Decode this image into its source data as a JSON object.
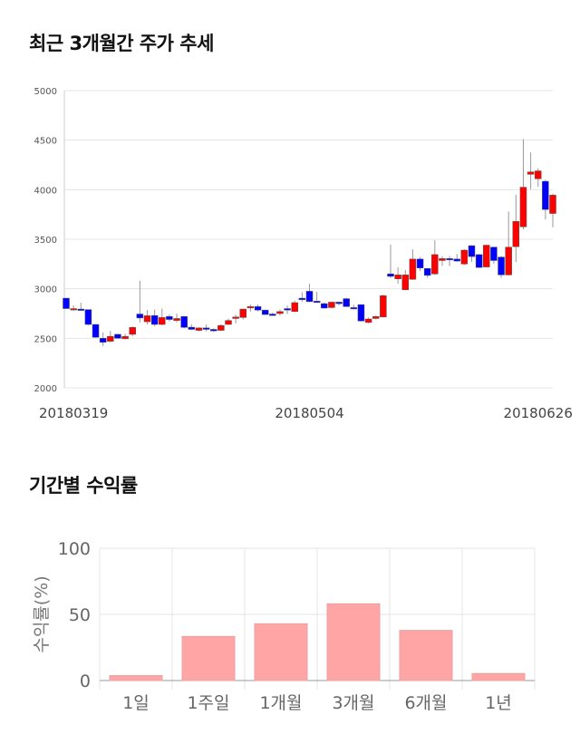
{
  "headings": {
    "price_trend": "최근 3개월간 주가 추세",
    "period_returns": "기간별 수익률"
  },
  "colors": {
    "up": "#ff0000",
    "down": "#0000ff",
    "wick": "#999999",
    "bar": "#ffa5a5",
    "grid": "#e6e6e6"
  },
  "chart_data": [
    {
      "type": "candlestick",
      "ylim": [
        2000,
        5000
      ],
      "yticks": [
        2000,
        2500,
        3000,
        3500,
        4000,
        4500,
        5000
      ],
      "xtick_labels": [
        {
          "index": 1,
          "label": "20180319"
        },
        {
          "index": 33,
          "label": "20180504"
        },
        {
          "index": 64,
          "label": "20180626"
        }
      ],
      "grid": true,
      "ohlc": [
        [
          2905,
          2905,
          2800,
          2800
        ],
        [
          2800,
          2832,
          2777,
          2800
        ],
        [
          2795,
          2860,
          2785,
          2790
        ],
        [
          2790,
          2790,
          2630,
          2640
        ],
        [
          2640,
          2640,
          2505,
          2510
        ],
        [
          2500,
          2560,
          2423,
          2460
        ],
        [
          2470,
          2575,
          2460,
          2520
        ],
        [
          2540,
          2545,
          2495,
          2500
        ],
        [
          2495,
          2545,
          2490,
          2520
        ],
        [
          2540,
          2620,
          2520,
          2610
        ],
        [
          2745,
          3080,
          2658,
          2705
        ],
        [
          2667,
          2786,
          2640,
          2728
        ],
        [
          2730,
          2790,
          2620,
          2640
        ],
        [
          2640,
          2800,
          2630,
          2710
        ],
        [
          2720,
          2740,
          2670,
          2690
        ],
        [
          2680,
          2750,
          2660,
          2700
        ],
        [
          2720,
          2725,
          2600,
          2610
        ],
        [
          2612,
          2640,
          2585,
          2590
        ],
        [
          2580,
          2610,
          2570,
          2605
        ],
        [
          2605,
          2640,
          2570,
          2590
        ],
        [
          2590,
          2600,
          2565,
          2575
        ],
        [
          2580,
          2640,
          2575,
          2630
        ],
        [
          2640,
          2700,
          2635,
          2680
        ],
        [
          2700,
          2740,
          2650,
          2715
        ],
        [
          2710,
          2800,
          2690,
          2795
        ],
        [
          2815,
          2840,
          2770,
          2820
        ],
        [
          2820,
          2840,
          2770,
          2785
        ],
        [
          2785,
          2790,
          2740,
          2740
        ],
        [
          2745,
          2760,
          2725,
          2730
        ],
        [
          2750,
          2790,
          2730,
          2770
        ],
        [
          2800,
          2830,
          2745,
          2785
        ],
        [
          2770,
          2880,
          2765,
          2860
        ],
        [
          2905,
          2965,
          2870,
          2890
        ],
        [
          2975,
          3050,
          2865,
          2870
        ],
        [
          2875,
          2970,
          2860,
          2870
        ],
        [
          2850,
          2860,
          2800,
          2805
        ],
        [
          2810,
          2870,
          2800,
          2865
        ],
        [
          2865,
          2870,
          2830,
          2850
        ],
        [
          2900,
          2910,
          2815,
          2820
        ],
        [
          2810,
          2840,
          2800,
          2805
        ],
        [
          2840,
          2845,
          2670,
          2675
        ],
        [
          2660,
          2710,
          2650,
          2695
        ],
        [
          2700,
          2730,
          2690,
          2720
        ],
        [
          2715,
          2940,
          2710,
          2930
        ],
        [
          3150,
          3445,
          3110,
          3125
        ],
        [
          3100,
          3216,
          3050,
          3140
        ],
        [
          2990,
          3190,
          2985,
          3140
        ],
        [
          3095,
          3399,
          3090,
          3300
        ],
        [
          3300,
          3320,
          3180,
          3210
        ],
        [
          3205,
          3210,
          3110,
          3135
        ],
        [
          3150,
          3490,
          3140,
          3345
        ],
        [
          3285,
          3330,
          3230,
          3305
        ],
        [
          3305,
          3330,
          3230,
          3300
        ],
        [
          3300,
          3350,
          3270,
          3280
        ],
        [
          3250,
          3400,
          3240,
          3390
        ],
        [
          3435,
          3440,
          3270,
          3325
        ],
        [
          3345,
          3350,
          3210,
          3215
        ],
        [
          3220,
          3445,
          3215,
          3440
        ],
        [
          3420,
          3425,
          3250,
          3285
        ],
        [
          3320,
          3330,
          3110,
          3140
        ],
        [
          3140,
          3780,
          3135,
          3420
        ],
        [
          3425,
          3948,
          3270,
          3680
        ],
        [
          3625,
          4512,
          3600,
          4025
        ],
        [
          4155,
          4375,
          4005,
          4180
        ],
        [
          4110,
          4215,
          4030,
          4190
        ],
        [
          4085,
          4100,
          3700,
          3800
        ],
        [
          3760,
          3960,
          3620,
          3945
        ]
      ]
    },
    {
      "type": "bar",
      "ylabel": "수익률(%)",
      "ylim": [
        0,
        100
      ],
      "yticks": [
        0,
        50,
        100
      ],
      "categories": [
        "1일",
        "1주일",
        "1개월",
        "3개월",
        "6개월",
        "1년"
      ],
      "values": [
        3.7,
        33.3,
        42.9,
        58.0,
        37.9,
        5.3
      ],
      "grid": true
    }
  ]
}
